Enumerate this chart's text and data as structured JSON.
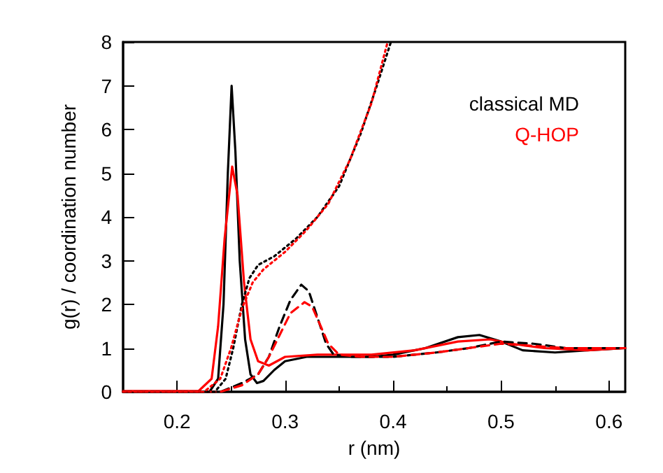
{
  "chart_data": {
    "type": "line",
    "xlabel": "r (nm)",
    "ylabel": "g(r) / coordination number",
    "xlim": [
      0.15,
      0.615
    ],
    "xticks": [
      0.2,
      0.3,
      0.4,
      0.5,
      0.6
    ],
    "ylim": [
      0,
      8
    ],
    "yticks": [
      0,
      1,
      2,
      3,
      4,
      5,
      6,
      7,
      8
    ],
    "grid": false,
    "legend": "top right",
    "marker": "none",
    "series": [
      {
        "name": "classical MD",
        "color": "#000000",
        "line_style": "solid",
        "x": [
          0.15,
          0.23,
          0.238,
          0.243,
          0.247,
          0.2505,
          0.254,
          0.258,
          0.263,
          0.268,
          0.274,
          0.28,
          0.29,
          0.3,
          0.32,
          0.35,
          0.38,
          0.4,
          0.43,
          0.46,
          0.48,
          0.5,
          0.52,
          0.55,
          0.58,
          0.615
        ],
        "values": [
          0,
          0,
          0.3,
          2,
          5,
          7,
          5.5,
          3,
          1.2,
          0.4,
          0.2,
          0.25,
          0.5,
          0.7,
          0.8,
          0.8,
          0.8,
          0.85,
          1.0,
          1.25,
          1.3,
          1.15,
          0.95,
          0.9,
          0.95,
          1.0
        ]
      },
      {
        "name": "Q-HOP",
        "color": "#ff0000",
        "line_style": "solid",
        "x": [
          0.15,
          0.22,
          0.232,
          0.238,
          0.244,
          0.251,
          0.256,
          0.262,
          0.268,
          0.275,
          0.285,
          0.3,
          0.33,
          0.38,
          0.42,
          0.46,
          0.49,
          0.51,
          0.54,
          0.58,
          0.615
        ],
        "values": [
          0.02,
          0.02,
          0.3,
          1.5,
          3.5,
          5.15,
          4.5,
          2.5,
          1.2,
          0.7,
          0.6,
          0.8,
          0.85,
          0.85,
          0.95,
          1.15,
          1.2,
          1.1,
          1.0,
          0.95,
          1.0
        ]
      },
      {
        "color": "#000000",
        "line_style": "dashed",
        "x": [
          0.15,
          0.24,
          0.26,
          0.275,
          0.285,
          0.295,
          0.305,
          0.315,
          0.322,
          0.33,
          0.338,
          0.345,
          0.36,
          0.4,
          0.44,
          0.47,
          0.5,
          0.53,
          0.56,
          0.615
        ],
        "values": [
          0,
          0,
          0.2,
          0.4,
          0.8,
          1.5,
          2.1,
          2.45,
          2.3,
          1.7,
          1.1,
          0.85,
          0.8,
          0.8,
          0.9,
          1.0,
          1.15,
          1.1,
          1.0,
          1.0
        ]
      },
      {
        "color": "#ff0000",
        "line_style": "dashed",
        "x": [
          0.15,
          0.24,
          0.26,
          0.275,
          0.285,
          0.295,
          0.305,
          0.318,
          0.325,
          0.333,
          0.34,
          0.35,
          0.37,
          0.4,
          0.44,
          0.47,
          0.5,
          0.53,
          0.56,
          0.615
        ],
        "values": [
          0,
          0,
          0.15,
          0.4,
          0.8,
          1.3,
          1.8,
          2.05,
          1.95,
          1.5,
          1.1,
          0.85,
          0.8,
          0.8,
          0.9,
          1.0,
          1.1,
          1.05,
          1.0,
          1.0
        ]
      },
      {
        "color": "#000000",
        "line_style": "dotted",
        "x": [
          0.15,
          0.235,
          0.245,
          0.252,
          0.26,
          0.267,
          0.275,
          0.29,
          0.31,
          0.33,
          0.35,
          0.37,
          0.385,
          0.398
        ],
        "values": [
          0,
          0,
          0.3,
          1,
          2,
          2.6,
          2.9,
          3.1,
          3.5,
          4.0,
          4.7,
          5.9,
          7.0,
          8.0
        ]
      },
      {
        "color": "#ff0000",
        "line_style": "dotted",
        "x": [
          0.15,
          0.225,
          0.24,
          0.25,
          0.26,
          0.27,
          0.28,
          0.3,
          0.32,
          0.34,
          0.36,
          0.38,
          0.395
        ],
        "values": [
          0,
          0,
          0.3,
          1,
          1.9,
          2.5,
          2.8,
          3.2,
          3.7,
          4.3,
          5.3,
          6.6,
          8.0
        ]
      }
    ]
  }
}
